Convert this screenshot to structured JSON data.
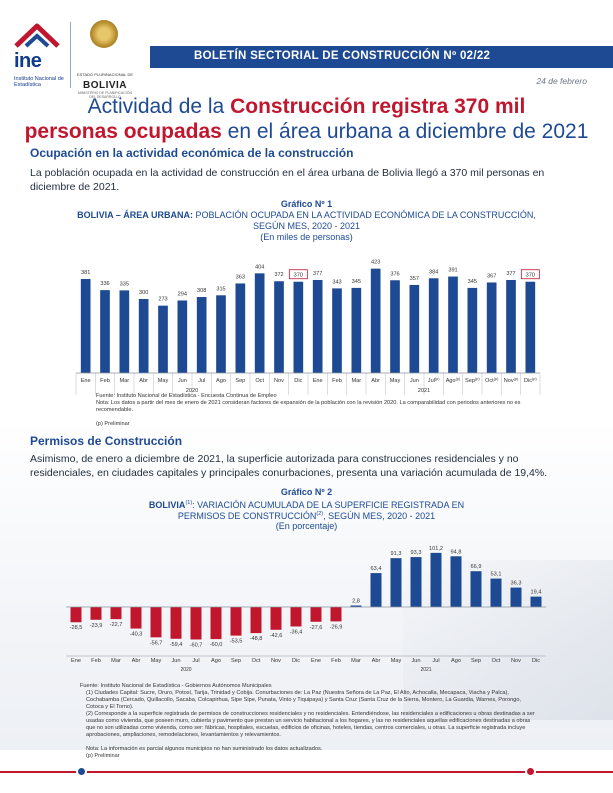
{
  "header": {
    "ine_logo_text": "ine",
    "ine_logo_sub": "Instituto Nacional de Estadística",
    "bolivia_logo_state": "ESTADO PLURINACIONAL DE",
    "bolivia_logo_name": "BOLIVIA",
    "bolivia_logo_ministry": "MINISTERIO DE PLANIFICACIÓN DEL DESARROLLO",
    "bulletin": "BOLETÍN SECTORIAL DE CONSTRUCCIÓN Nº 02/22",
    "date": "24 de febrero"
  },
  "title": {
    "line1_a": "Actividad de la ",
    "line1_em": "Construcción registra 370 mil",
    "line2_em": "personas ocupadas",
    "line2_b": " en el área urbana a diciembre de 2021"
  },
  "section1": {
    "heading": "Ocupación en la actividad económica de la construcción",
    "paragraph": "La población ocupada en la actividad de construcción en el área urbana de Bolivia llegó a 370 mil personas en diciembre de 2021."
  },
  "section2": {
    "heading": "Permisos de Construcción",
    "paragraph": "Asimismo, de enero a diciembre de 2021, la superficie autorizada para construcciones residenciales y no residenciales, en ciudades capitales y principales conurbaciones, presenta una variación acumulada de 19,4%."
  },
  "chart_data": [
    {
      "type": "bar",
      "graph_label": "Gráfico Nº 1",
      "title_bold": "BOLIVIA – ÁREA URBANA:",
      "title_rest": " POBLACIÓN OCUPADA EN LA ACTIVIDAD ECONÓMICA DE LA CONSTRUCCIÓN,",
      "title_line2": "SEGÚN MES, 2020 - 2021",
      "subtitle": "(En miles de personas)",
      "categories": [
        "Ene",
        "Feb",
        "Mar",
        "Abr",
        "May",
        "Jun",
        "Jul",
        "Ago",
        "Sep",
        "Oct",
        "Nov",
        "Dic",
        "Ene",
        "Feb",
        "Mar",
        "Abr",
        "May",
        "Jun",
        "Jul(p)",
        "Ago(p)",
        "Sep(p)",
        "Oct(p)",
        "Nov(p)",
        "Dic(p)"
      ],
      "tick_labels": [
        "Ene",
        "Feb",
        "Mar",
        "Abr",
        "May",
        "Jun",
        "Jul",
        "Ago",
        "Sep",
        "Oct",
        "Nov",
        "Dic",
        "Ene",
        "Feb",
        "Mar",
        "Abr",
        "May",
        "Jun",
        "Jul",
        "Ago",
        "Sep",
        "Oct",
        "Nov",
        "Dic"
      ],
      "tick_sup": [
        "",
        "",
        "",
        "",
        "",
        "",
        "",
        "",
        "",
        "",
        "",
        "",
        "",
        "",
        "",
        "",
        "",
        "",
        "(p)",
        "(p)",
        "(p)",
        "(p)",
        "(p)",
        "(p)"
      ],
      "years": [
        "2020",
        "2021"
      ],
      "values": [
        381,
        336,
        335,
        300,
        273,
        294,
        308,
        315,
        363,
        404,
        372,
        370,
        377,
        343,
        345,
        423,
        376,
        357,
        384,
        391,
        345,
        367,
        377,
        370
      ],
      "highlighted": [
        11,
        23
      ],
      "ylim": [
        0,
        450
      ],
      "color": "#1d4a93",
      "source": "Fuente: Instituto Nacional de Estadística - Encuesta Continua de Empleo",
      "note": "Nota: Los datos a partir del mes de enero de 2021 consideran factores de expansión de la población con la revisión 2020. La comparabilidad con periodos anteriores no es recomendable.",
      "prelim": "(p) Preliminar"
    },
    {
      "type": "bar",
      "graph_label": "Gráfico Nº 2",
      "title_bold": "BOLIVIA",
      "title_sup1": "(1)",
      "title_rest": ": VARIACIÓN ACUMULADA DE LA SUPERFICIE REGISTRADA EN",
      "title_line2": "PERMISOS DE CONSTRUCCIÓN",
      "title_sup2": "(2)",
      "title_line2b": ", SEGÚN MES, 2020 - 2021",
      "subtitle": "(En porcentaje)",
      "categories": [
        "Ene",
        "Feb",
        "Mar",
        "Abr",
        "May",
        "Jun",
        "Jul",
        "Ago",
        "Sep",
        "Oct",
        "Nov",
        "Dic",
        "Ene",
        "Feb",
        "Mar",
        "Abr",
        "May",
        "Jun",
        "Jul",
        "Ago",
        "Sep",
        "Oct",
        "Nov",
        "Dic"
      ],
      "years": [
        "2020",
        "2021"
      ],
      "values": [
        -28.5,
        -23.9,
        -22.7,
        -40.3,
        -56.7,
        -59.4,
        -60.7,
        -60.0,
        -53.5,
        -48.8,
        -42.6,
        -36.4,
        -27.6,
        -26.9,
        2.8,
        63.4,
        91.3,
        93.3,
        101.2,
        94.8,
        66.9,
        53.1,
        36.3,
        19.4
      ],
      "value_labels": [
        "-28,5",
        "-23,9",
        "-22,7",
        "-40,3",
        "-56,7",
        "-59,4",
        "-60,7",
        "-60,0",
        "-53,5",
        "-48,8",
        "-42,6",
        "-36,4",
        "-27,6",
        "-26,9",
        "2,8",
        "63,4",
        "91,3",
        "93,3",
        "101,2",
        "94,8",
        "66,9",
        "53,1",
        "36,3",
        "19,4"
      ],
      "positive_color": "#1d4a93",
      "negative_color": "#c0172e",
      "source": "Fuente: Instituto Nacional de Estadística - Gobiernos Autónomos Municipales",
      "notes": [
        "(1) Ciudades Capital: Sucre, Oruro, Potosí, Tarija, Trinidad y Cobija. Conurbaciones de: La Paz (Nuestra Señora de La Paz, El Alto, Achocalla, Mecapaca, Viacha y Palca), Cochabamba (Cercado, Quillacollo, Sacaba, Colcapirhua, Sipe Sipe, Punata, Vinto y Tiquipaya) y Santa Cruz (Santa Cruz de la Sierra, Montero, La Guardia, Warnes, Porongo, Cotoca y El Torno).",
        "(2) Corresponde a la superficie registrada de permisos de construcciones residenciales y no residenciales. Entendiéndose, las residenciales a edificaciones u obras destinadas a ser usadas como vivienda, que poseen muro, cubierta y pavimento que prestan un servicio habitacional a los hogares, y las no residenciales aquellas edificaciones destinadas a obras que no son utilizadas como vivienda, como ser: fábricas, hospitales, escuelas, edificios de oficinas, hoteles, tiendas, centros comerciales, u otras. La superficie registrada incluye aprobaciones, ampliaciones, remodelaciones, levantamientos y relevamientos.",
        "Nota: La información es parcial algunos municipios no han suministrado los datos actualizados.",
        "(p) Preliminar"
      ]
    }
  ]
}
